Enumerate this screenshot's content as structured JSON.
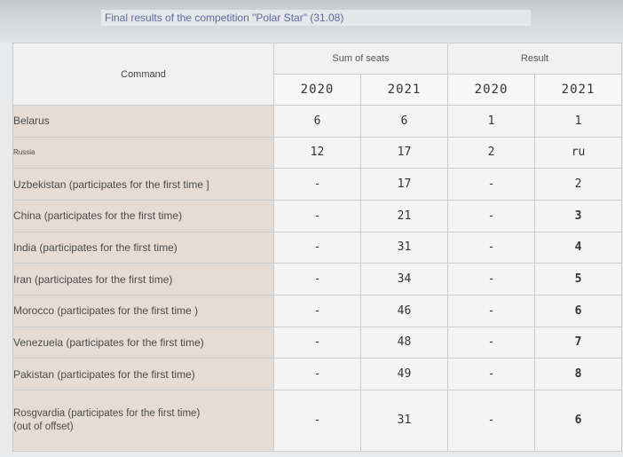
{
  "title": "Final results of the competition \"Polar Star\" (31.08)",
  "header": {
    "command": "Command",
    "sum_of_seats": "Sum of seats",
    "result": "Result",
    "years": [
      "2020",
      "2021",
      "2020",
      "2021"
    ]
  },
  "rows": [
    {
      "team": "Belarus",
      "seats_2020": "6",
      "seats_2021": "6",
      "result_2020": "1",
      "result_2021": "1"
    },
    {
      "team": "Russia",
      "seats_2020": "12",
      "seats_2021": "17",
      "result_2020": "2",
      "result_2021": "ru"
    },
    {
      "team": "Uzbekistan (participates for the first time ]",
      "seats_2020": "-",
      "seats_2021": "17",
      "result_2020": "-",
      "result_2021": "2"
    },
    {
      "team": "China (participates for the first time)",
      "seats_2020": "-",
      "seats_2021": "21",
      "result_2020": "-",
      "result_2021": "3"
    },
    {
      "team": "India (participates for the first time)",
      "seats_2020": "-",
      "seats_2021": "31",
      "result_2020": "-",
      "result_2021": "4"
    },
    {
      "team": "Iran (participates for the first time)",
      "seats_2020": "-",
      "seats_2021": "34",
      "result_2020": "-",
      "result_2021": "5"
    },
    {
      "team": "Morocco (participates for the first time )",
      "seats_2020": "-",
      "seats_2021": "46",
      "result_2020": "-",
      "result_2021": "6"
    },
    {
      "team": "Venezuela (participates for the first time)",
      "seats_2020": "-",
      "seats_2021": "48",
      "result_2020": "-",
      "result_2021": "7"
    },
    {
      "team": "Pakistan (participates for the first time)",
      "seats_2020": "-",
      "seats_2021": "49",
      "result_2020": "-",
      "result_2021": "8"
    },
    {
      "team_line1": "Rosgvardia (participates for the first time)",
      "team_line2": "(out of offset)",
      "seats_2020": "-",
      "seats_2021": "31",
      "result_2020": "-",
      "result_2021": "6"
    }
  ],
  "colors": {
    "first_place": "#d94a4a",
    "second_place": "#3aa25a",
    "third_place": "#2a5fb0",
    "team_cell": "#e6dcd3"
  }
}
